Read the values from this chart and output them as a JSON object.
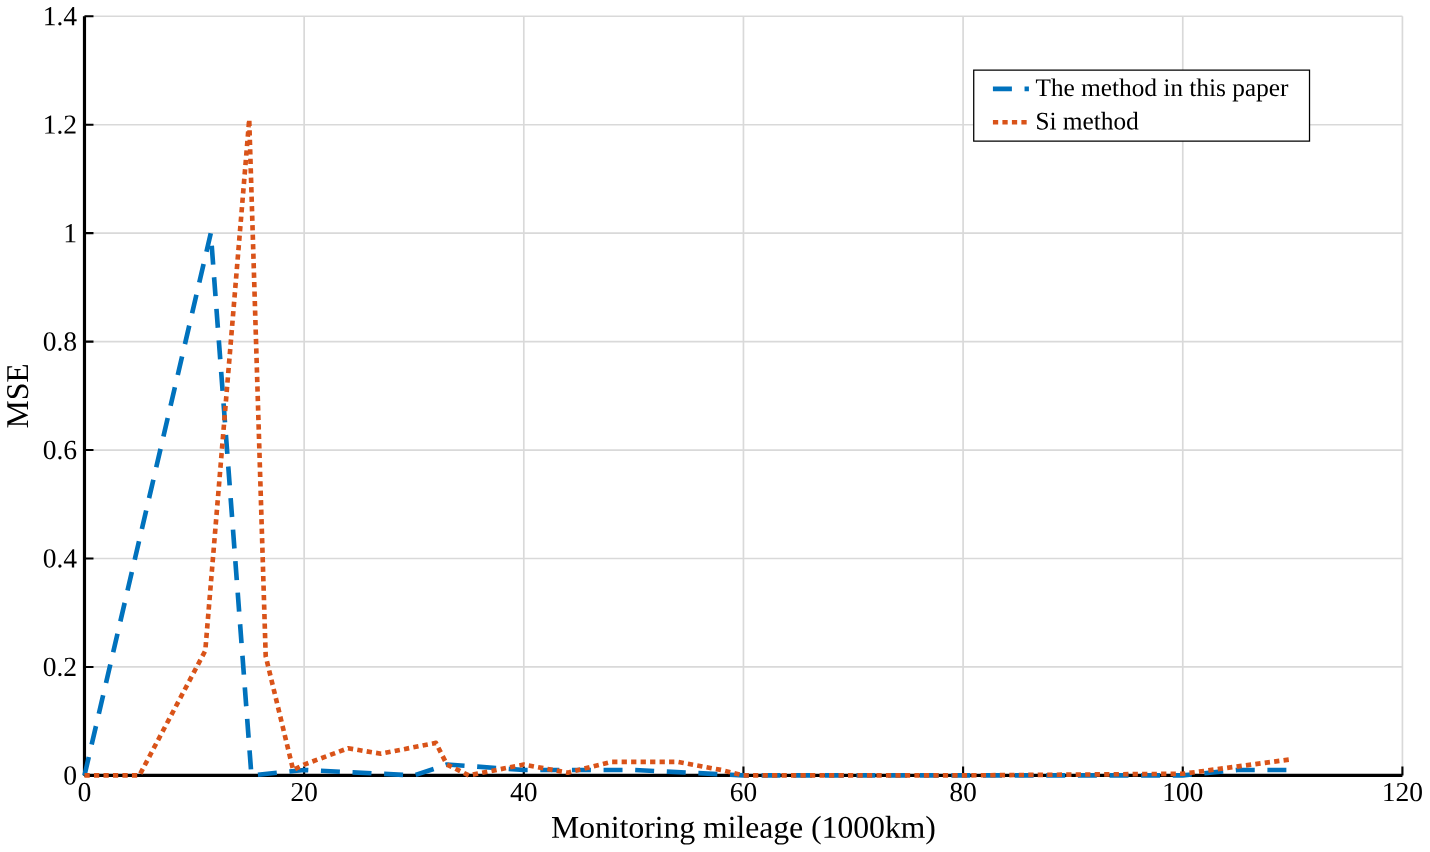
{
  "chart_data": {
    "type": "line",
    "xlabel": "Monitoring mileage (1000km)",
    "ylabel": "MSE",
    "xlim": [
      0,
      120
    ],
    "ylim": [
      0,
      1.4
    ],
    "xticks": [
      0,
      20,
      40,
      60,
      80,
      100,
      120
    ],
    "yticks": [
      0,
      0.2,
      0.4,
      0.6,
      0.8,
      1,
      1.2,
      1.4
    ],
    "grid": true,
    "legend": "top right",
    "series": [
      {
        "name": "The method in this paper",
        "color": "#0072bd",
        "line_style": "dashed",
        "x": [
          0,
          11.5,
          15.2,
          20,
          30,
          33,
          40,
          50,
          60,
          80,
          100,
          105,
          110
        ],
        "values": [
          0,
          1.0,
          0,
          0.01,
          0,
          0.02,
          0.01,
          0.01,
          0,
          0,
          0,
          0.01,
          0.01
        ]
      },
      {
        "name": "Si method",
        "color": "#d95319",
        "line_style": "dotted",
        "x": [
          0,
          5,
          11,
          15,
          16.5,
          19,
          20,
          24,
          27,
          32,
          33,
          35,
          40,
          44,
          48,
          54,
          58,
          60,
          80,
          100,
          110
        ],
        "values": [
          0,
          0,
          0.23,
          1.21,
          0.22,
          0.01,
          0.02,
          0.05,
          0.04,
          0.06,
          0.02,
          0,
          0.02,
          0.005,
          0.025,
          0.025,
          0.01,
          0,
          0,
          0.003,
          0.03
        ]
      }
    ]
  }
}
